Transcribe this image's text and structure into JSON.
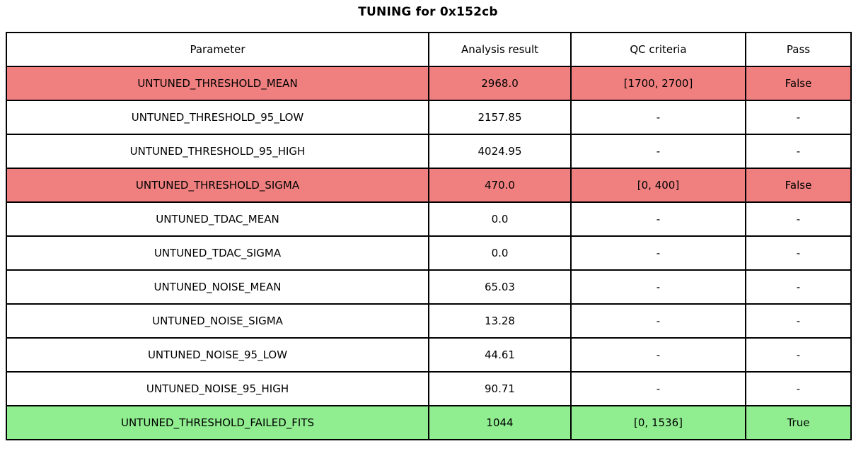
{
  "chart_data": {
    "type": "table",
    "title": "TUNING for 0x152cb",
    "columns": [
      "Parameter",
      "Analysis result",
      "QC criteria",
      "Pass"
    ],
    "rows": [
      {
        "parameter": "UNTUNED_THRESHOLD_MEAN",
        "analysis_result": "2968.0",
        "qc_criteria": "[1700, 2700]",
        "pass": "False",
        "status": "fail"
      },
      {
        "parameter": "UNTUNED_THRESHOLD_95_LOW",
        "analysis_result": "2157.85",
        "qc_criteria": "-",
        "pass": "-",
        "status": "none"
      },
      {
        "parameter": "UNTUNED_THRESHOLD_95_HIGH",
        "analysis_result": "4024.95",
        "qc_criteria": "-",
        "pass": "-",
        "status": "none"
      },
      {
        "parameter": "UNTUNED_THRESHOLD_SIGMA",
        "analysis_result": "470.0",
        "qc_criteria": "[0, 400]",
        "pass": "False",
        "status": "fail"
      },
      {
        "parameter": "UNTUNED_TDAC_MEAN",
        "analysis_result": "0.0",
        "qc_criteria": "-",
        "pass": "-",
        "status": "none"
      },
      {
        "parameter": "UNTUNED_TDAC_SIGMA",
        "analysis_result": "0.0",
        "qc_criteria": "-",
        "pass": "-",
        "status": "none"
      },
      {
        "parameter": "UNTUNED_NOISE_MEAN",
        "analysis_result": "65.03",
        "qc_criteria": "-",
        "pass": "-",
        "status": "none"
      },
      {
        "parameter": "UNTUNED_NOISE_SIGMA",
        "analysis_result": "13.28",
        "qc_criteria": "-",
        "pass": "-",
        "status": "none"
      },
      {
        "parameter": "UNTUNED_NOISE_95_LOW",
        "analysis_result": "44.61",
        "qc_criteria": "-",
        "pass": "-",
        "status": "none"
      },
      {
        "parameter": "UNTUNED_NOISE_95_HIGH",
        "analysis_result": "90.71",
        "qc_criteria": "-",
        "pass": "-",
        "status": "none"
      },
      {
        "parameter": "UNTUNED_THRESHOLD_FAILED_FITS",
        "analysis_result": "1044",
        "qc_criteria": "[0, 1536]",
        "pass": "True",
        "status": "pass"
      }
    ]
  },
  "colors": {
    "fail_bg": "#f08080",
    "pass_bg": "#90ee90",
    "default_bg": "#ffffff",
    "border": "#000000",
    "text": "#000000"
  }
}
